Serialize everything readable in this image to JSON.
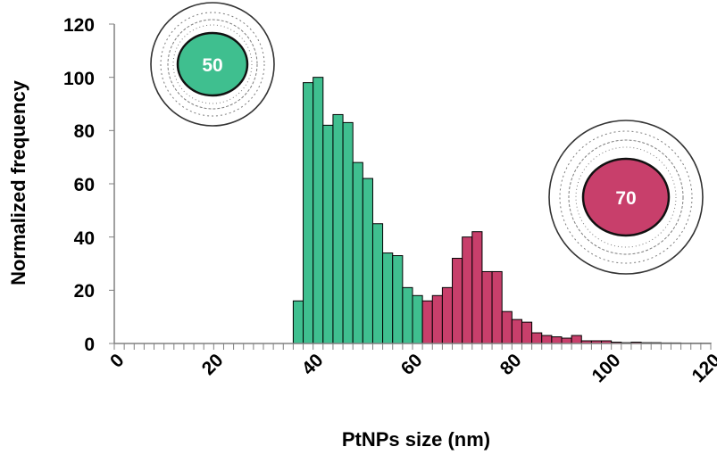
{
  "chart_data": {
    "type": "bar",
    "xlabel": "PtNPs size (nm)",
    "ylabel": "Normalized frequency",
    "xlim": [
      0,
      120
    ],
    "ylim": [
      0,
      120
    ],
    "x_ticks": [
      "0",
      "20",
      "40",
      "60",
      "80",
      "100",
      "120"
    ],
    "y_ticks": [
      "0",
      "20",
      "40",
      "60",
      "80",
      "100",
      "120"
    ],
    "bin_width_nm": 2,
    "grid": false,
    "series": [
      {
        "color": "#3fbf8f",
        "x": [
          37,
          39,
          41,
          43,
          45,
          47,
          49,
          51,
          53,
          55,
          57,
          59,
          61
        ],
        "values": [
          16,
          98,
          100,
          82,
          86,
          83,
          68,
          62,
          45,
          34,
          33,
          21,
          18
        ]
      },
      {
        "color": "#c83f6b",
        "x": [
          63,
          65,
          67,
          69,
          71,
          73,
          75,
          77,
          79,
          81,
          83,
          85,
          87,
          89,
          91,
          93,
          95,
          97,
          99,
          101,
          103,
          105,
          107,
          109,
          111,
          113,
          115,
          117,
          119
        ],
        "values": [
          16,
          18,
          21,
          32,
          40,
          42,
          27,
          27,
          12,
          9,
          8,
          4,
          3,
          2.5,
          2,
          3,
          1,
          1,
          1,
          0.5,
          0.3,
          0.5,
          0.3,
          0.3,
          0.2,
          0.2,
          0.1,
          0.1,
          0.1
        ]
      }
    ]
  },
  "insets": [
    {
      "label": "50",
      "fill": "#3fbf8f"
    },
    {
      "label": "70",
      "fill": "#c83f6b"
    }
  ]
}
